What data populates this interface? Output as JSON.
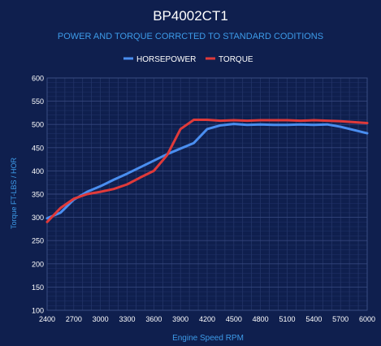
{
  "chart_data": {
    "type": "line",
    "title": "BP4002CT1",
    "subtitle": "POWER AND TORQUE CORRCTED TO STANDARD CODITIONS",
    "xlabel": "Engine Speed RPM",
    "ylabel": "Torque FT-LBS / HOR",
    "x": [
      2400,
      2550,
      2700,
      2850,
      3000,
      3150,
      3300,
      3450,
      3600,
      3750,
      3900,
      4050,
      4200,
      4350,
      4500,
      4650,
      4800,
      4950,
      5100,
      5250,
      5400,
      5550,
      5700,
      5850,
      6000
    ],
    "x_ticks": [
      2400,
      2700,
      3000,
      3300,
      3600,
      3900,
      4200,
      4500,
      4800,
      5100,
      5400,
      5700,
      6000
    ],
    "y_ticks": [
      100,
      150,
      200,
      250,
      300,
      350,
      400,
      450,
      500,
      550,
      600
    ],
    "xlim": [
      2400,
      6000
    ],
    "ylim": [
      100,
      600
    ],
    "grid": true,
    "legend_position": "top-center",
    "series": [
      {
        "name": "HORSEPOWER",
        "color": "#4a8ef0",
        "values": [
          298,
          310,
          338,
          355,
          367,
          381,
          394,
          408,
          422,
          436,
          448,
          460,
          490,
          498,
          501,
          499,
          500,
          499,
          499,
          500,
          499,
          500,
          495,
          488,
          481
        ]
      },
      {
        "name": "TORQUE",
        "color": "#e03a3a",
        "values": [
          290,
          320,
          340,
          350,
          355,
          361,
          371,
          386,
          400,
          434,
          490,
          510,
          510,
          508,
          509,
          508,
          509,
          509,
          509,
          508,
          509,
          508,
          507,
          505,
          503
        ]
      }
    ]
  }
}
